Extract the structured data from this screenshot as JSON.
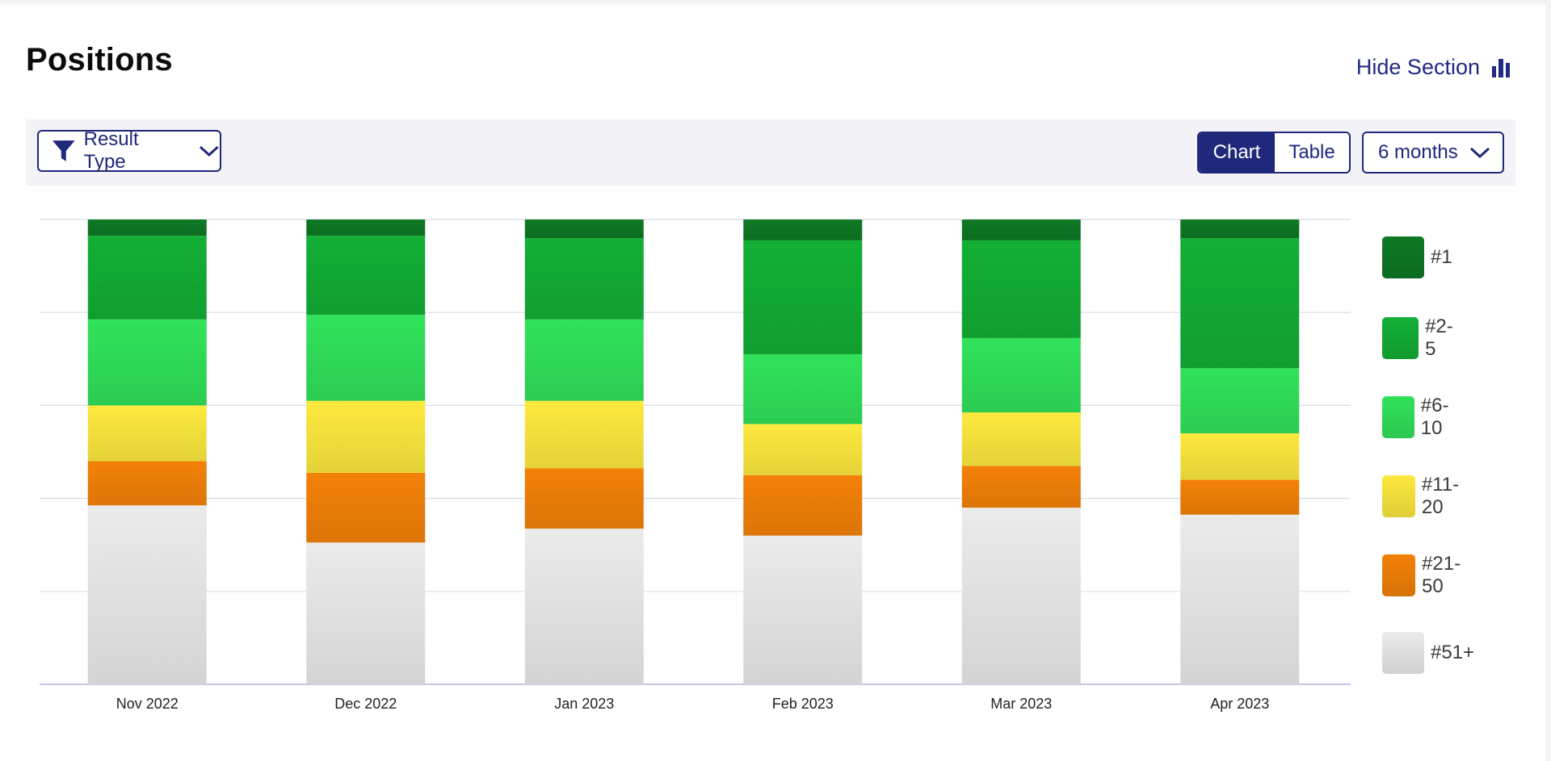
{
  "header": {
    "title": "Positions",
    "hide_section_label": "Hide Section",
    "hide_section_icon": "bar-chart-icon"
  },
  "toolbar": {
    "filter_label": "Result Type",
    "filter_icon": "funnel-icon",
    "view_options": [
      "Chart",
      "Table"
    ],
    "selected_view": "Chart",
    "range_label": "6 months"
  },
  "colors": {
    "accent": "#1f287a",
    "toolbar_bg": "#f2f2f7",
    "gridline": "#dcdce8"
  },
  "chart_data": {
    "type": "bar",
    "stacked": true,
    "normalized_to_percent": true,
    "categories": [
      "Nov 2022",
      "Dec 2022",
      "Jan 2023",
      "Feb 2023",
      "Mar 2023",
      "Apr 2023"
    ],
    "series": [
      {
        "name": "#51+",
        "color": "#e2e2e2",
        "values": [
          38.5,
          30.5,
          33.5,
          32.0,
          38.0,
          36.5
        ]
      },
      {
        "name": "#21-50",
        "color": "#ea7c08",
        "values": [
          9.5,
          15.0,
          13.0,
          13.0,
          9.0,
          7.5
        ]
      },
      {
        "name": "#11-20",
        "color": "#f3e03c",
        "values": [
          12.0,
          15.5,
          14.5,
          11.0,
          11.5,
          10.0
        ]
      },
      {
        "name": "#6-10",
        "color": "#2fd957",
        "values": [
          18.5,
          18.5,
          17.5,
          15.0,
          16.0,
          14.0
        ]
      },
      {
        "name": "#2-5",
        "color": "#12a834",
        "values": [
          18.0,
          17.0,
          17.5,
          24.5,
          21.0,
          28.0
        ]
      },
      {
        "name": "#1",
        "color": "#0d7424",
        "values": [
          3.5,
          3.5,
          4.0,
          4.5,
          4.5,
          4.0
        ]
      }
    ],
    "ylim": [
      0,
      100
    ],
    "grid": true,
    "legend_position": "right",
    "xlabel": "",
    "ylabel": ""
  }
}
